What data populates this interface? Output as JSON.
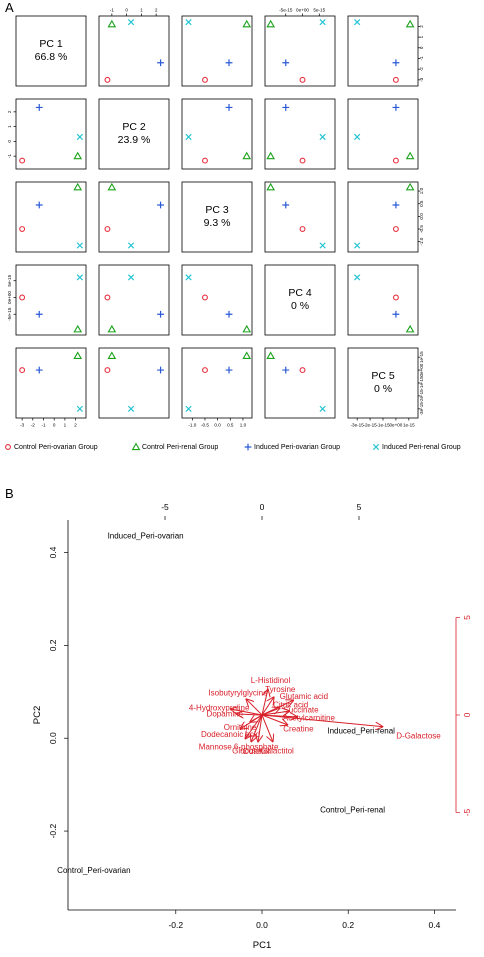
{
  "figure": {
    "panel_a_label": "A",
    "panel_b_label": "B"
  },
  "chart_data": [
    {
      "type": "scatter",
      "name": "pairs",
      "pcs": [
        {
          "label": "PC 1",
          "pct": "66.8 %"
        },
        {
          "label": "PC 2",
          "pct": "23.9 %"
        },
        {
          "label": "PC 3",
          "pct": "9.3 %"
        },
        {
          "label": "PC 4",
          "pct": "0 %"
        },
        {
          "label": "PC 5",
          "pct": "0 %"
        }
      ],
      "axes": [
        {
          "min": -3.2,
          "max": 2.6,
          "ticks": [
            -3,
            -2,
            -1,
            0,
            1,
            2
          ],
          "tick_labels": [
            "-3",
            "-2",
            "-1",
            "0",
            "1",
            "2"
          ]
        },
        {
          "min": -1.6,
          "max": 2.6,
          "ticks": [
            -1,
            0,
            1,
            2
          ],
          "tick_labels": [
            "-1",
            "0",
            "1",
            "2"
          ]
        },
        {
          "min": -1.25,
          "max": 1.2,
          "ticks": [
            -1.0,
            -0.5,
            0,
            0.5,
            1.0
          ],
          "tick_labels": [
            "-1.0",
            "-0.5",
            "0.0",
            "0.5",
            "1.0"
          ]
        },
        {
          "min": -1e-14,
          "max": 8.5e-15,
          "ticks": [
            -5e-15,
            0,
            5e-15
          ],
          "tick_labels": [
            "-5e-15",
            "0e+00",
            "5e-15"
          ]
        },
        {
          "min": -3.4e-15,
          "max": 1.4e-15,
          "ticks": [
            -3e-15,
            -2e-15,
            -1e-15,
            0,
            1e-15
          ],
          "tick_labels": [
            "-3e-15",
            "-2e-15",
            "-1e-15",
            "0e+00",
            "1e-15"
          ]
        }
      ],
      "top_ticks": [
        1,
        3
      ],
      "right_ticks": [
        0,
        2,
        4
      ],
      "bottom_ticks": [
        0,
        2,
        4
      ],
      "left_ticks": [
        1,
        3
      ],
      "groups": [
        {
          "name": "Control Peri-ovarian Group",
          "symbol": "circle",
          "color": "#e8303f",
          "scores": [
            -3.0,
            -1.3,
            -0.5,
            0.0,
            0.0
          ]
        },
        {
          "name": "Control Peri-renal Group",
          "symbol": "triangle",
          "color": "#1aa21a",
          "scores": [
            2.2,
            -1.0,
            1.15,
            -9.5e-15,
            1.1e-15
          ]
        },
        {
          "name": "Induced Peri-ovarian Group",
          "symbol": "plus",
          "color": "#2a5ad6",
          "scores": [
            -1.4,
            2.3,
            0.45,
            -5e-15,
            0.0
          ]
        },
        {
          "name": "Induced Peri-renal Group",
          "symbol": "cross",
          "color": "#26c4d4",
          "scores": [
            2.4,
            0.3,
            -1.15,
            6e-15,
            -3e-15
          ]
        }
      ]
    },
    {
      "type": "scatter",
      "name": "biplot",
      "xlabel": "PC1",
      "ylabel": "PC2",
      "xlim": [
        -0.45,
        0.45
      ],
      "ylim": [
        -0.37,
        0.47
      ],
      "xticks": [
        -0.2,
        0.0,
        0.2,
        0.4
      ],
      "xtick_labels": [
        "-0.2",
        "0.0",
        "0.2",
        "0.4"
      ],
      "yticks": [
        -0.2,
        0.0,
        0.2,
        0.4
      ],
      "ytick_labels": [
        "-0.2",
        "0.0",
        "0.2",
        "0.4"
      ],
      "var_xlim": [
        -10,
        10
      ],
      "var_ylim": [
        -10,
        10
      ],
      "top_ticks": [
        -5,
        0,
        5
      ],
      "top_tick_labels": [
        "-5",
        "0",
        "5"
      ],
      "right_ticks": [
        -5,
        0,
        5
      ],
      "right_tick_labels": [
        "-5",
        "0",
        "5"
      ],
      "samples": [
        {
          "name": "Induced_Peri-ovarian",
          "x": -0.27,
          "y": 0.43
        },
        {
          "name": "Induced_Peri-renal",
          "x": 0.23,
          "y": 0.01
        },
        {
          "name": "Control_Peri-renal",
          "x": 0.21,
          "y": -0.16
        },
        {
          "name": "Control_Peri-ovarian",
          "x": -0.39,
          "y": -0.29
        }
      ],
      "loadings": [
        {
          "name": "D-Galactose",
          "x": 6.2,
          "y": -0.6,
          "color": "#d8202a"
        },
        {
          "name": "L-Histidinol",
          "x": 0.3,
          "y": 1.3,
          "color": "#d8202a"
        },
        {
          "name": "Mannose 6-phosphate",
          "x": -0.85,
          "y": -1.2,
          "color": "#d8202a"
        },
        {
          "name": "Galactitol",
          "x": 0.55,
          "y": -1.35,
          "color": "#d8202a"
        },
        {
          "name": "Glucose",
          "x": -0.55,
          "y": -1.35,
          "color": "#d8202a"
        },
        {
          "name": "Dulcitol",
          "x": -0.2,
          "y": -1.35,
          "color": "#d8202a"
        },
        {
          "name": "Isobutyrylglycine",
          "x": -0.8,
          "y": 0.8,
          "color": "#d8202a"
        },
        {
          "name": "Tyrosine",
          "x": 0.6,
          "y": 0.9,
          "color": "#d8202a"
        },
        {
          "name": "Glutamic acid",
          "x": 1.6,
          "y": 0.75,
          "color": "#d8202a"
        },
        {
          "name": "4-Hydroxyproline",
          "x": -1.6,
          "y": 0.3,
          "color": "#d8202a"
        },
        {
          "name": "Dopamine",
          "x": -1.3,
          "y": 0.05,
          "color": "#d8202a"
        },
        {
          "name": "Ornithine",
          "x": -0.6,
          "y": -0.35,
          "color": "#d8202a"
        },
        {
          "name": "Dodecanoic acid",
          "x": -1.1,
          "y": -0.7,
          "color": "#d8202a"
        },
        {
          "name": "Succinate",
          "x": 1.4,
          "y": 0.2,
          "color": "#d8202a"
        },
        {
          "name": "Creatine",
          "x": 1.3,
          "y": -0.5,
          "color": "#d8202a"
        },
        {
          "name": "Acetylcarnitine",
          "x": 1.8,
          "y": -0.1,
          "color": "#d8202a"
        },
        {
          "name": "Citric acid",
          "x": 0.9,
          "y": 0.35,
          "color": "#d8202a"
        }
      ]
    }
  ]
}
